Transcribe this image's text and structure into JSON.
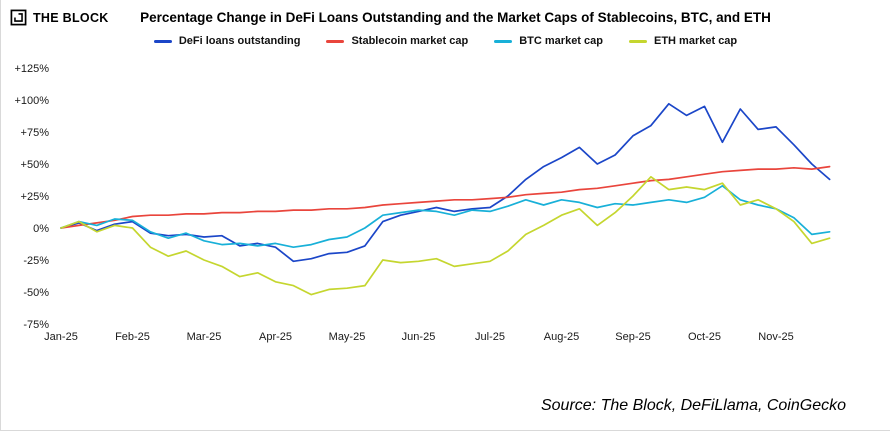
{
  "page": {
    "logo_text": "THE BLOCK",
    "title": "Percentage Change in DeFi Loans Outstanding and the Market Caps of Stablecoins, BTC, and ETH",
    "source": "Source: The Block, DeFiLlama, CoinGecko"
  },
  "chart_data": {
    "type": "line",
    "title": "Percentage Change in DeFi Loans Outstanding and the Market Caps of Stablecoins, BTC, and ETH",
    "x_tick_labels": [
      "Jan-25",
      "Feb-25",
      "Mar-25",
      "Apr-25",
      "May-25",
      "Jun-25",
      "Jul-25",
      "Aug-25",
      "Sep-25",
      "Oct-25",
      "Nov-25"
    ],
    "x_unit": "months since Jan-2025, points spaced weekly",
    "x_months_per_point": 0.25,
    "y_ticks": [
      125,
      100,
      75,
      50,
      25,
      0,
      -25,
      -50,
      -75
    ],
    "y_tick_labels": [
      "+125%",
      "+100%",
      "+75%",
      "+50%",
      "+25%",
      "0%",
      "-25%",
      "-50%",
      "-75%"
    ],
    "ylim": [
      -85,
      135
    ],
    "grid": false,
    "legend_position": "top",
    "series": [
      {
        "name": "DeFi loans outstanding",
        "color": "#1b46c8",
        "values": [
          0,
          4,
          -2,
          3,
          5,
          -4,
          -6,
          -5,
          -7,
          -6,
          -14,
          -12,
          -15,
          -26,
          -24,
          -20,
          -19,
          -14,
          5,
          10,
          13,
          16,
          13,
          15,
          16,
          25,
          38,
          48,
          55,
          63,
          50,
          57,
          72,
          80,
          97,
          88,
          95,
          67,
          93,
          77,
          79,
          65,
          50,
          38
        ]
      },
      {
        "name": "Stablecoin market cap",
        "color": "#e9453c",
        "values": [
          0,
          2,
          4,
          6,
          9,
          10,
          10,
          11,
          11,
          12,
          12,
          13,
          13,
          14,
          14,
          15,
          15,
          16,
          18,
          19,
          20,
          21,
          22,
          22,
          23,
          24,
          26,
          27,
          28,
          30,
          31,
          33,
          35,
          37,
          38,
          40,
          42,
          44,
          45,
          46,
          46,
          47,
          46,
          48
        ]
      },
      {
        "name": "BTC market cap",
        "color": "#18b0d8",
        "values": [
          0,
          5,
          2,
          7,
          6,
          -3,
          -8,
          -4,
          -10,
          -13,
          -12,
          -14,
          -12,
          -15,
          -13,
          -9,
          -7,
          0,
          10,
          12,
          14,
          13,
          10,
          14,
          13,
          17,
          22,
          18,
          22,
          20,
          16,
          19,
          18,
          20,
          22,
          20,
          24,
          33,
          22,
          18,
          15,
          8,
          -5,
          -3
        ]
      },
      {
        "name": "ETH market cap",
        "color": "#c5d62f",
        "values": [
          0,
          5,
          -3,
          2,
          0,
          -15,
          -22,
          -18,
          -25,
          -30,
          -38,
          -35,
          -42,
          -45,
          -52,
          -48,
          -47,
          -45,
          -25,
          -27,
          -26,
          -24,
          -30,
          -28,
          -26,
          -18,
          -5,
          2,
          10,
          15,
          2,
          12,
          25,
          40,
          30,
          32,
          30,
          35,
          18,
          22,
          15,
          5,
          -12,
          -8
        ]
      }
    ]
  }
}
